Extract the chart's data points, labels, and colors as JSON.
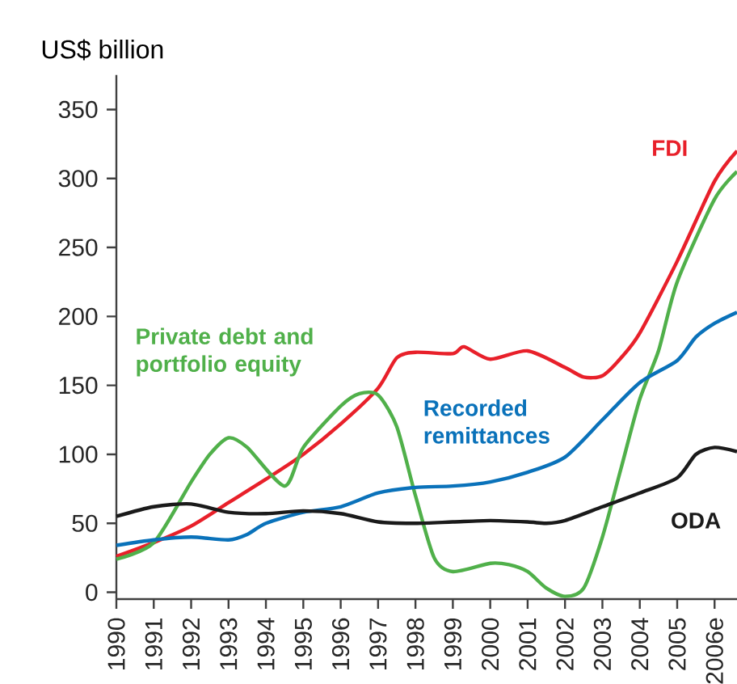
{
  "chart_data": {
    "type": "line",
    "ylabel": "US$ billion",
    "xlim": [
      1990,
      2006.6
    ],
    "ylim": [
      -5,
      375
    ],
    "xticks": [
      1990,
      1991,
      1992,
      1993,
      1994,
      1995,
      1996,
      1997,
      1998,
      1999,
      2000,
      2001,
      2002,
      2003,
      2004,
      2005,
      {
        "value": 2006,
        "label": "2006e"
      }
    ],
    "yticks": [
      0,
      50,
      100,
      150,
      200,
      250,
      300,
      350
    ],
    "grid": false,
    "legend": false,
    "marker": "none",
    "line_style": "solid",
    "series": [
      {
        "name": "FDI",
        "color": "#e8202a",
        "x": [
          1990,
          1991,
          1992,
          1993,
          1994,
          1995,
          1996,
          1997,
          1997.5,
          1998,
          1999,
          1999.3,
          2000,
          2001,
          2002,
          2002.5,
          2003,
          2003.5,
          2004,
          2005,
          2006,
          2006.6
        ],
        "values": [
          26,
          36,
          48,
          65,
          82,
          100,
          122,
          148,
          170,
          174,
          173,
          178,
          169,
          175,
          163,
          156,
          157,
          170,
          188,
          240,
          298,
          320
        ]
      },
      {
        "name": "Private debt and portfolio equity",
        "color": "#50b04a",
        "x": [
          1990,
          1991,
          1992,
          1992.5,
          1993,
          1993.5,
          1994.5,
          1995,
          1996,
          1996.5,
          1997,
          1997.5,
          1998,
          1998.5,
          1999,
          2000,
          2000.5,
          2001,
          2001.5,
          2002,
          2002.5,
          2003,
          2003.5,
          2004,
          2004.5,
          2005,
          2006,
          2006.6
        ],
        "values": [
          24,
          36,
          80,
          100,
          112,
          105,
          77,
          105,
          135,
          144,
          143,
          120,
          70,
          25,
          15,
          21,
          20,
          15,
          3,
          -3,
          3,
          40,
          90,
          140,
          175,
          225,
          285,
          305
        ]
      },
      {
        "name": "Recorded remittances",
        "color": "#0a72ba",
        "x": [
          1990,
          1991,
          1992,
          1993,
          1993.5,
          1994,
          1995,
          1996,
          1997,
          1998,
          1999,
          2000,
          2001,
          2002,
          2003,
          2004,
          2005,
          2005.5,
          2006,
          2006.6
        ],
        "values": [
          34,
          38,
          40,
          38,
          42,
          50,
          58,
          62,
          72,
          76,
          77,
          80,
          87,
          98,
          125,
          152,
          168,
          185,
          195,
          203
        ]
      },
      {
        "name": "ODA",
        "color": "#1a1a1a",
        "x": [
          1990,
          1991,
          1992,
          1993,
          1994,
          1995,
          1996,
          1997,
          1998,
          1999,
          2000,
          2001,
          2001.5,
          2002,
          2003,
          2004,
          2005,
          2005.5,
          2006,
          2006.6
        ],
        "values": [
          55,
          62,
          64,
          58,
          57,
          59,
          57,
          51,
          50,
          51,
          52,
          51,
          50,
          52,
          62,
          72,
          83,
          100,
          105,
          102
        ]
      }
    ]
  }
}
